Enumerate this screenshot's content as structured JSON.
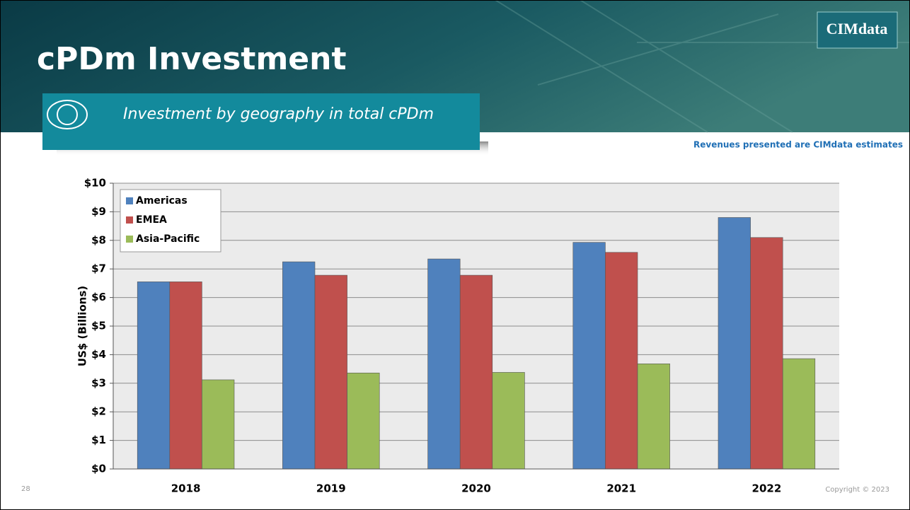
{
  "slide": {
    "title": "cPDm Investment",
    "subtitle": "Investment by geography in total cPDm",
    "logo": "CIMdata",
    "note": "Revenues presented are CIMdata estimates",
    "page_number": "28",
    "copyright": "Copyright © 2023"
  },
  "chart_data": {
    "type": "bar",
    "y_label": "US$ (Billions)",
    "categories": [
      "2018",
      "2019",
      "2020",
      "2021",
      "2022"
    ],
    "series": [
      {
        "name": "Americas",
        "color": "#4f81bd",
        "values": [
          6.55,
          7.25,
          7.35,
          7.93,
          8.8
        ]
      },
      {
        "name": "EMEA",
        "color": "#c0504d",
        "values": [
          6.55,
          6.78,
          6.78,
          7.58,
          8.1
        ]
      },
      {
        "name": "Asia-Pacific",
        "color": "#9bbb59",
        "values": [
          3.12,
          3.36,
          3.38,
          3.68,
          3.86
        ]
      }
    ],
    "ylim": [
      0,
      10
    ],
    "yticks": [
      {
        "value": 0,
        "label": "$0"
      },
      {
        "value": 1,
        "label": "$1"
      },
      {
        "value": 2,
        "label": "$2"
      },
      {
        "value": 3,
        "label": "$3"
      },
      {
        "value": 4,
        "label": "$4"
      },
      {
        "value": 5,
        "label": "$5"
      },
      {
        "value": 6,
        "label": "$6"
      },
      {
        "value": 7,
        "label": "$7"
      },
      {
        "value": 8,
        "label": "$8"
      },
      {
        "value": 9,
        "label": "$9"
      },
      {
        "value": 10,
        "label": "$10"
      }
    ],
    "grid": true,
    "legend": "top-left"
  }
}
